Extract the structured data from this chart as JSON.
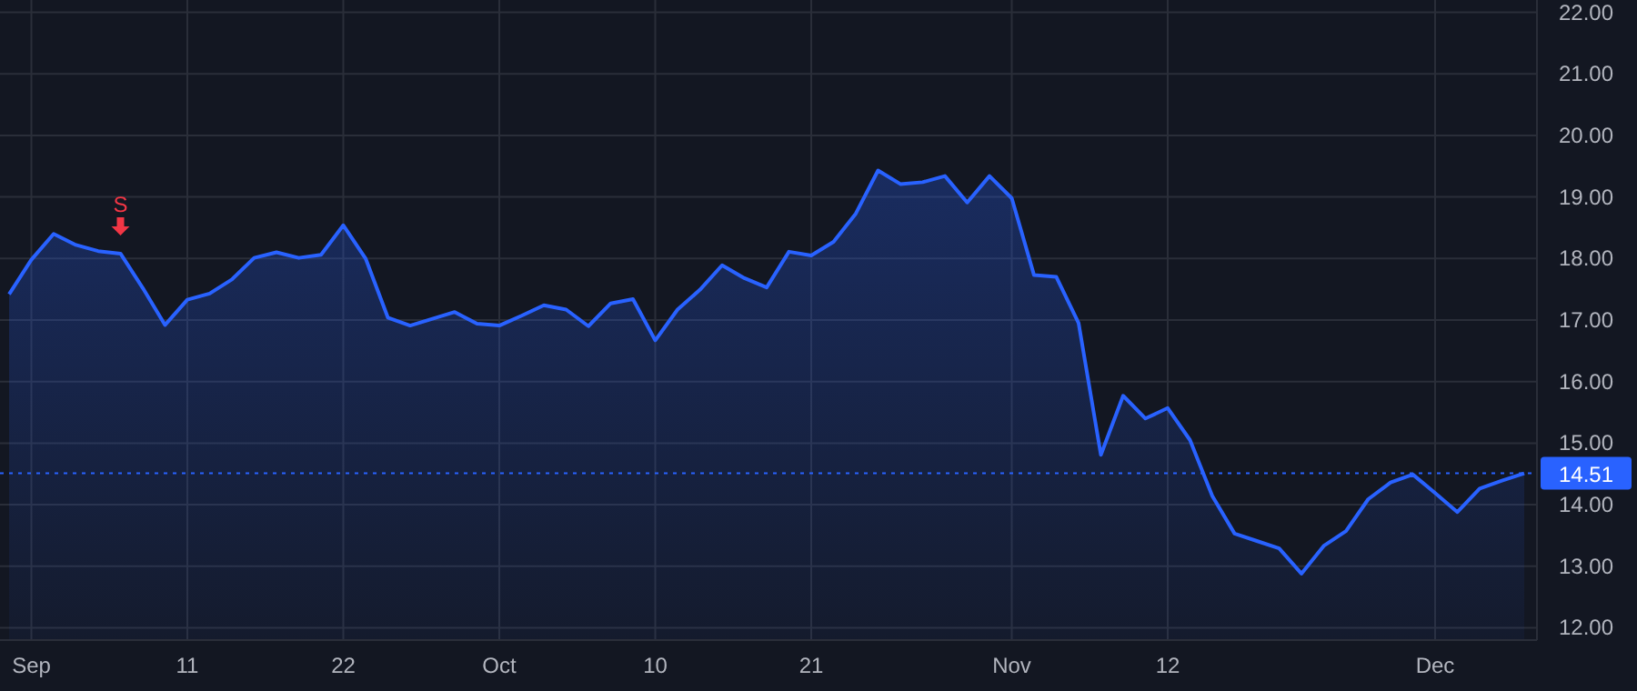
{
  "chart_data": {
    "type": "area",
    "categories": [
      null,
      "Sep",
      null,
      null,
      null,
      null,
      null,
      null,
      "11",
      null,
      null,
      null,
      null,
      null,
      null,
      "22",
      null,
      null,
      null,
      null,
      null,
      null,
      "Oct",
      null,
      null,
      null,
      null,
      null,
      null,
      "10",
      null,
      null,
      null,
      null,
      null,
      null,
      "21",
      null,
      null,
      null,
      null,
      null,
      null,
      null,
      null,
      "Nov",
      null,
      null,
      null,
      null,
      null,
      null,
      "12",
      null,
      null,
      null,
      null,
      null,
      null,
      null,
      null,
      null,
      null,
      null,
      "Dec",
      null,
      null,
      null,
      null
    ],
    "series": [
      {
        "color": "#2962ff",
        "values": [
          17.42,
          17.98,
          18.4,
          18.22,
          18.12,
          18.08,
          17.52,
          16.92,
          17.33,
          17.43,
          17.66,
          18.01,
          18.1,
          18.01,
          18.06,
          18.54,
          18.0,
          17.04,
          16.91,
          17.02,
          17.13,
          16.94,
          16.91,
          17.07,
          17.24,
          17.17,
          16.9,
          17.27,
          17.34,
          16.67,
          17.17,
          17.49,
          17.89,
          17.68,
          17.53,
          18.11,
          18.05,
          18.27,
          18.73,
          19.43,
          19.21,
          19.24,
          19.34,
          18.91,
          19.34,
          18.98,
          17.73,
          17.7,
          16.95,
          14.81,
          15.77,
          15.4,
          15.57,
          15.05,
          14.14,
          13.53,
          13.41,
          13.29,
          12.88,
          13.33,
          13.57,
          14.09,
          14.36,
          14.49,
          14.19,
          13.88,
          14.26,
          14.39,
          14.51
        ]
      }
    ],
    "ylim": [
      11.8,
      22.2
    ],
    "yticks": [
      {
        "value": 12,
        "label": "12.00"
      },
      {
        "value": 13,
        "label": "13.00"
      },
      {
        "value": 14,
        "label": "14.00"
      },
      {
        "value": 15,
        "label": "15.00"
      },
      {
        "value": 16,
        "label": "16.00"
      },
      {
        "value": 17,
        "label": "17.00"
      },
      {
        "value": 18,
        "label": "18.00"
      },
      {
        "value": 19,
        "label": "19.00"
      },
      {
        "value": 20,
        "label": "20.00"
      },
      {
        "value": 21,
        "label": "21.00"
      },
      {
        "value": 22,
        "label": "22.00"
      }
    ],
    "grid": true,
    "ref_lines": [
      {
        "axis": "y",
        "value": 14.51,
        "label": "14.51",
        "color": "#2962ff",
        "line_style": "dotted"
      }
    ],
    "annotations": [
      {
        "text": "S",
        "y": 18.08
      }
    ]
  }
}
